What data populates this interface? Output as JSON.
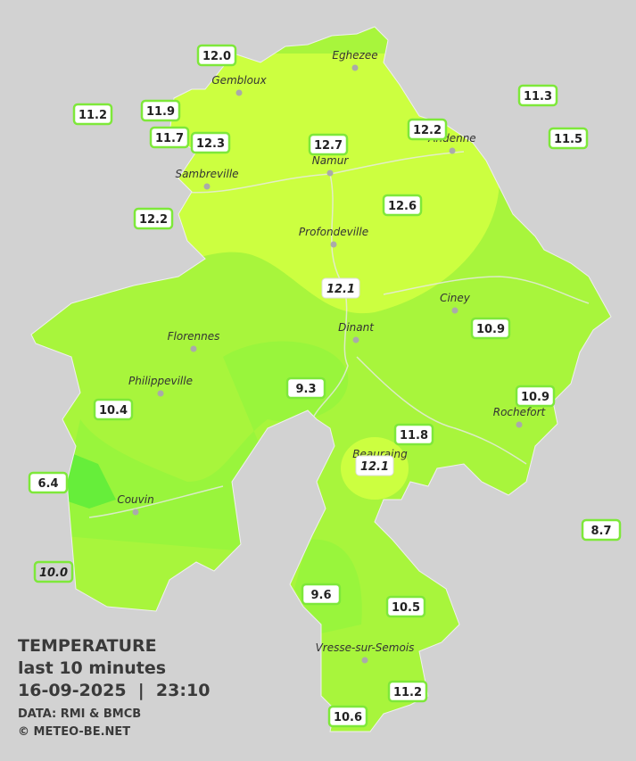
{
  "legend": {
    "title": "TEMPERATURE",
    "subtitle": "last 10 minutes",
    "datetime": "16-09-2025  |  23:10",
    "source": "DATA: RMI & BMCB",
    "credit": "© METEO-BE.NET"
  },
  "towns": [
    "Eghezee",
    "Gembloux",
    "Andenne",
    "Namur",
    "Sambreville",
    "Profondeville",
    "Ciney",
    "Dinant",
    "Florennes",
    "Philippeville",
    "Rochefort",
    "Beauraing",
    "Couvin",
    "Vresse-sur-Semois"
  ],
  "readings": [
    "12.0",
    "11.2",
    "11.9",
    "11.7",
    "12.3",
    "12.7",
    "12.2",
    "11.3",
    "11.5",
    "12.6",
    "12.2",
    "12.1",
    "10.9",
    "9.3",
    "10.4",
    "10.9",
    "11.8",
    "12.1",
    "6.4",
    "8.7",
    "10.0",
    "9.6",
    "10.5",
    "11.2",
    "10.6"
  ]
}
